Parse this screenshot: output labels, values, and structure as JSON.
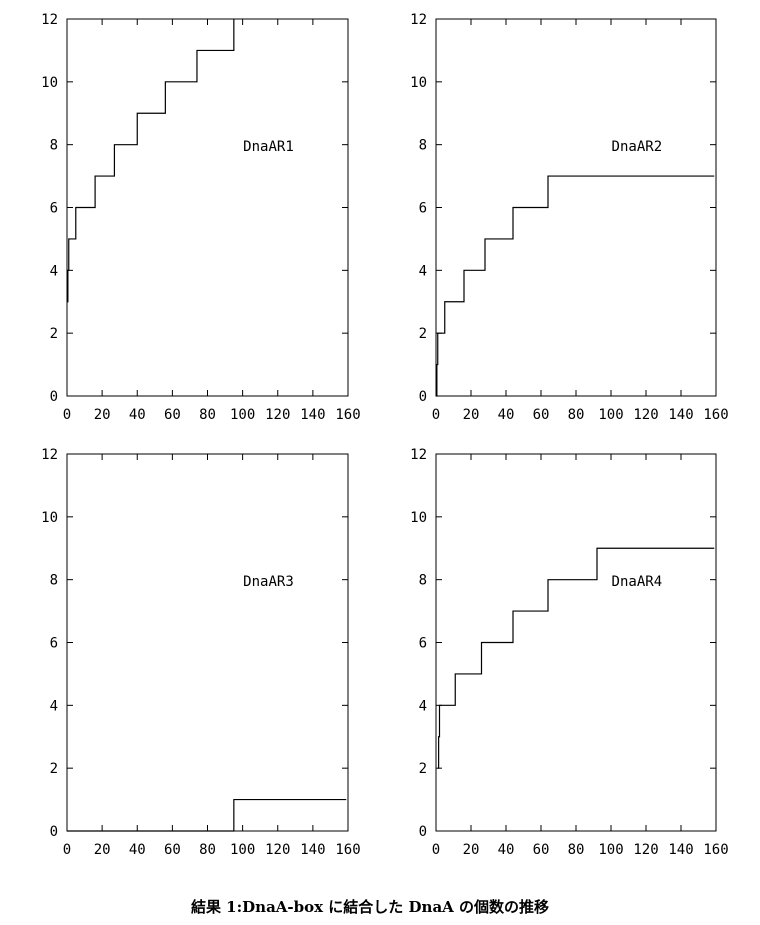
{
  "caption": "結果 1:DnaA-box に結合した DnaA の個数の推移",
  "chart_data": [
    {
      "type": "line",
      "step": true,
      "label": "DnaAR1",
      "xlim": [
        0,
        160
      ],
      "ylim": [
        0,
        12
      ],
      "xticks": [
        0,
        20,
        40,
        60,
        80,
        100,
        120,
        140,
        160
      ],
      "yticks": [
        0,
        2,
        4,
        6,
        8,
        10,
        12
      ],
      "grid": false,
      "points": [
        [
          0,
          3
        ],
        [
          0.5,
          4
        ],
        [
          1,
          5
        ],
        [
          5,
          6
        ],
        [
          16,
          7
        ],
        [
          27,
          8
        ],
        [
          40,
          9
        ],
        [
          56,
          10
        ],
        [
          74,
          11
        ],
        [
          95,
          12
        ]
      ],
      "x_end": 95
    },
    {
      "type": "line",
      "step": true,
      "label": "DnaAR2",
      "xlim": [
        0,
        160
      ],
      "ylim": [
        0,
        12
      ],
      "xticks": [
        0,
        20,
        40,
        60,
        80,
        100,
        120,
        140,
        160
      ],
      "yticks": [
        0,
        2,
        4,
        6,
        8,
        10,
        12
      ],
      "grid": false,
      "points": [
        [
          0,
          0
        ],
        [
          0.5,
          1
        ],
        [
          1,
          2
        ],
        [
          5,
          3
        ],
        [
          16,
          4
        ],
        [
          28,
          5
        ],
        [
          44,
          6
        ],
        [
          64,
          7
        ]
      ],
      "x_end": 159
    },
    {
      "type": "line",
      "step": true,
      "label": "DnaAR3",
      "xlim": [
        0,
        160
      ],
      "ylim": [
        0,
        12
      ],
      "xticks": [
        0,
        20,
        40,
        60,
        80,
        100,
        120,
        140,
        160
      ],
      "yticks": [
        0,
        2,
        4,
        6,
        8,
        10,
        12
      ],
      "grid": false,
      "points": [
        [
          0,
          0
        ],
        [
          95,
          1
        ]
      ],
      "x_end": 159
    },
    {
      "type": "line",
      "step": true,
      "label": "DnaAR4",
      "xlim": [
        0,
        160
      ],
      "ylim": [
        0,
        12
      ],
      "xticks": [
        0,
        20,
        40,
        60,
        80,
        100,
        120,
        140,
        160
      ],
      "yticks": [
        0,
        2,
        4,
        6,
        8,
        10,
        12
      ],
      "grid": false,
      "points": [
        [
          1,
          2
        ],
        [
          1.5,
          3
        ],
        [
          2,
          4
        ],
        [
          11,
          5
        ],
        [
          26,
          6
        ],
        [
          44,
          7
        ],
        [
          64,
          8
        ],
        [
          92,
          9
        ]
      ],
      "x_end": 159
    }
  ]
}
